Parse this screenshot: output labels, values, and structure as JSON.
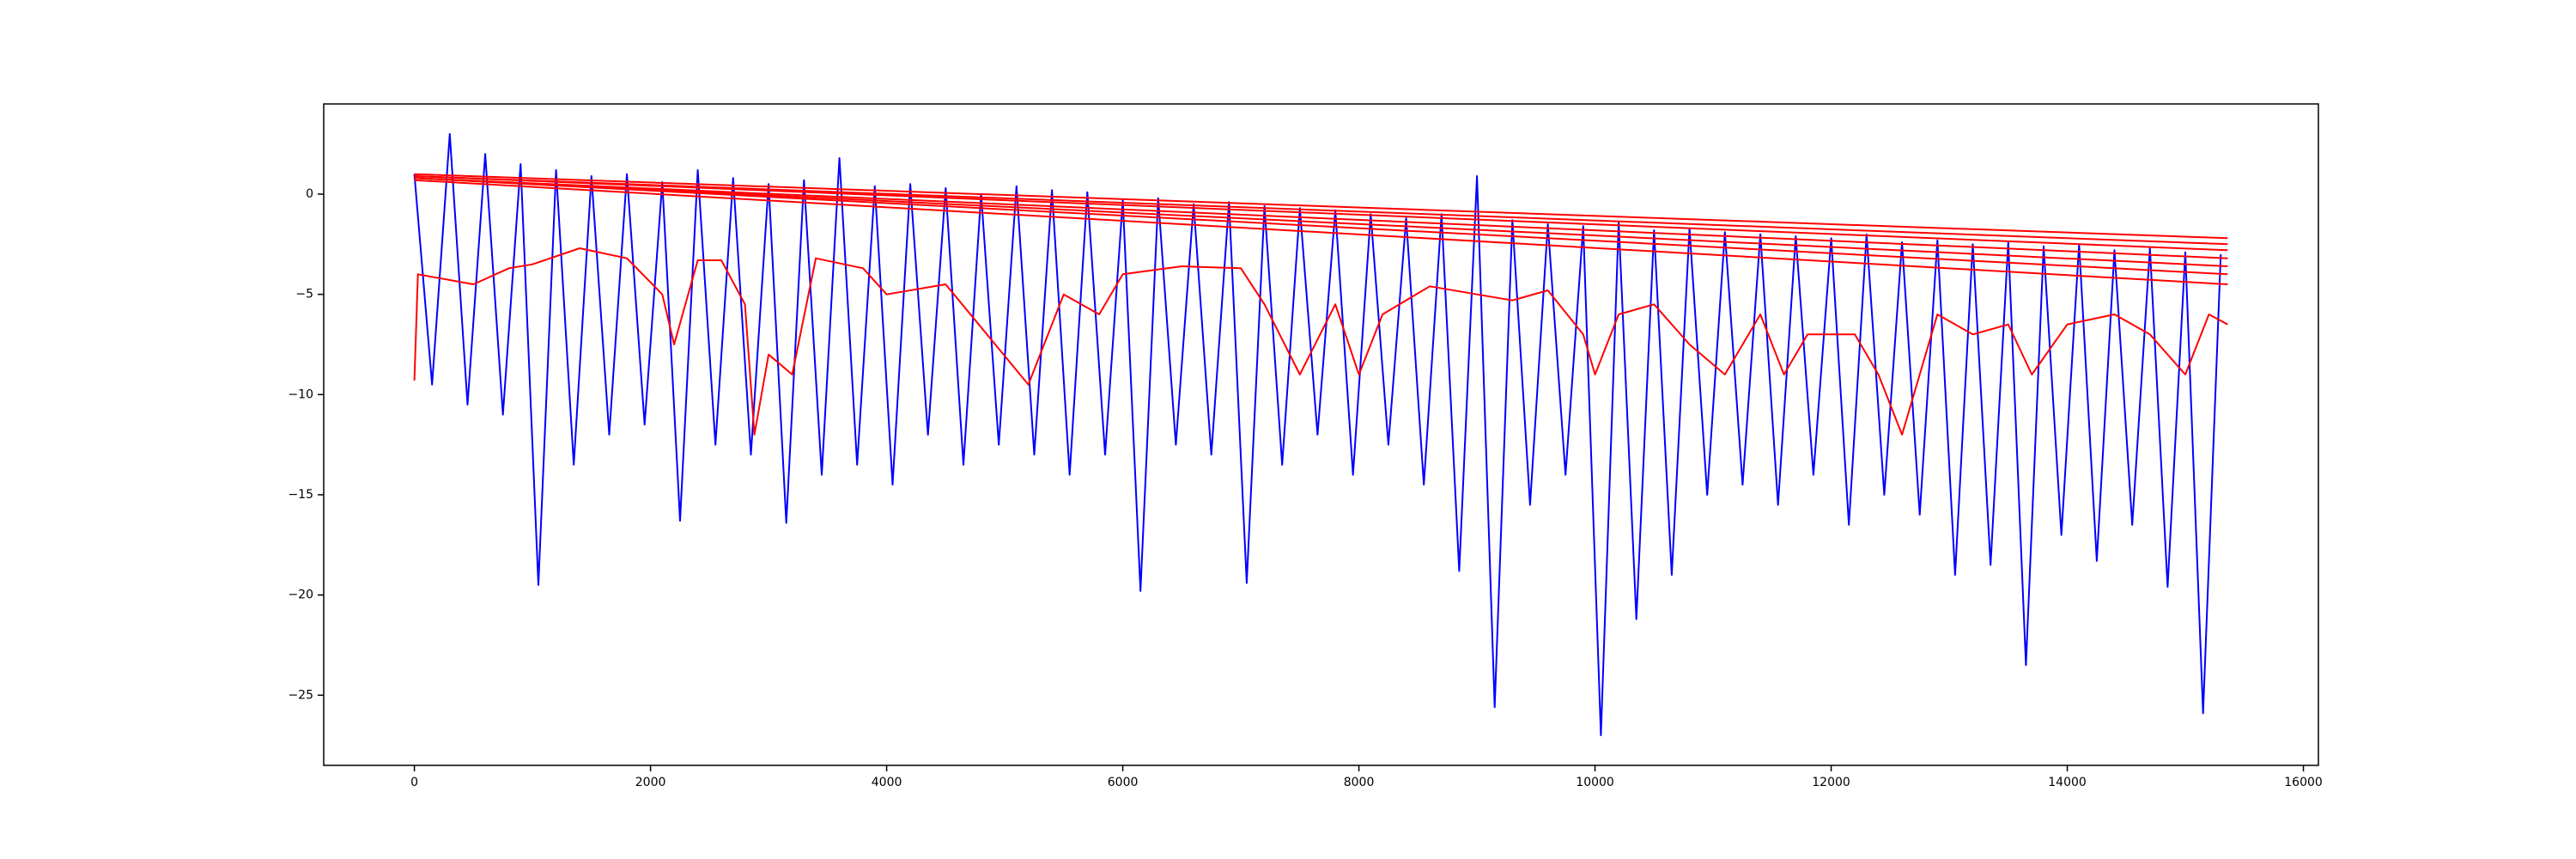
{
  "chart_data": {
    "type": "line",
    "x": [
      0,
      150,
      300,
      450,
      600,
      750,
      900,
      1050,
      1200,
      1350,
      1500,
      1650,
      1800,
      1950,
      2100,
      2250,
      2400,
      2550,
      2700,
      2850,
      3000,
      3150,
      3300,
      3450,
      3600,
      3750,
      3900,
      4050,
      4200,
      4350,
      4500,
      4650,
      4800,
      4950,
      5100,
      5250,
      5400,
      5550,
      5700,
      5850,
      6000,
      6150,
      6300,
      6450,
      6600,
      6750,
      6900,
      7050,
      7200,
      7350,
      7500,
      7650,
      7800,
      7950,
      8100,
      8250,
      8400,
      8550,
      8700,
      8850,
      9000,
      9150,
      9300,
      9450,
      9600,
      9750,
      9900,
      10050,
      10200,
      10350,
      10500,
      10650,
      10800,
      10950,
      11100,
      11250,
      11400,
      11550,
      11700,
      11850,
      12000,
      12150,
      12300,
      12450,
      12600,
      12750,
      12900,
      13050,
      13200,
      13350,
      13500,
      13650,
      13800,
      13950,
      14100,
      14250,
      14400,
      14550,
      14700,
      14850,
      15000,
      15150,
      15300
    ],
    "series": [
      {
        "color": "#0000ff",
        "values": [
          1.0,
          -9.5,
          3.0,
          -10.5,
          2.0,
          -11.0,
          1.5,
          -19.5,
          1.2,
          -13.5,
          0.9,
          -12.0,
          1.0,
          -11.5,
          0.6,
          -16.3,
          1.2,
          -12.5,
          0.8,
          -13.0,
          0.5,
          -16.4,
          0.7,
          -14.0,
          1.8,
          -13.5,
          0.4,
          -14.5,
          0.5,
          -12.0,
          0.3,
          -13.5,
          0.0,
          -12.5,
          0.4,
          -13.0,
          0.2,
          -14.0,
          0.1,
          -13.0,
          -0.3,
          -19.8,
          -0.2,
          -12.5,
          -0.5,
          -13.0,
          -0.4,
          -19.4,
          -0.6,
          -13.5,
          -0.7,
          -12.0,
          -0.8,
          -14.0,
          -1.0,
          -12.5,
          -1.2,
          -14.5,
          -1.0,
          -18.8,
          0.9,
          -25.6,
          -1.3,
          -15.5,
          -1.5,
          -14.0,
          -1.6,
          -27.0,
          -1.4,
          -21.2,
          -1.8,
          -19.0,
          -1.7,
          -15.0,
          -1.9,
          -14.5,
          -2.0,
          -15.5,
          -2.1,
          -14.0,
          -2.2,
          -16.5,
          -2.0,
          -15.0,
          -2.4,
          -16.0,
          -2.3,
          -19.0,
          -2.5,
          -18.5,
          -2.4,
          -23.5,
          -2.6,
          -17.0,
          -2.5,
          -18.3,
          -2.8,
          -16.5,
          -2.7,
          -19.6,
          -2.9,
          -25.9,
          -3.0
        ]
      },
      {
        "color": "#ff0000",
        "x": [
          0,
          30,
          500,
          800,
          1000,
          1400,
          1800,
          2100,
          2200,
          2400,
          2600,
          2800,
          2880,
          3000,
          3200,
          3400,
          3800,
          4000,
          4500,
          5200,
          5500,
          5800,
          6000,
          6500,
          7000,
          7200,
          7500,
          7800,
          8000,
          8200,
          8600,
          9000,
          9300,
          9600,
          9900,
          10000,
          10200,
          10500,
          10800,
          11100,
          11400,
          11600,
          11800,
          12200,
          12400,
          12600,
          12900,
          13200,
          13500,
          13700,
          14000,
          14400,
          14700,
          15000,
          15200,
          15359
        ],
        "values": [
          -9.3,
          -4.0,
          -4.5,
          -3.7,
          -3.5,
          -2.7,
          -3.2,
          -5.0,
          -7.5,
          -3.3,
          -3.3,
          -5.5,
          -12.0,
          -8.0,
          -9.0,
          -3.2,
          -3.7,
          -5.0,
          -4.5,
          -9.5,
          -5.0,
          -6.0,
          -4.0,
          -3.6,
          -3.7,
          -5.5,
          -9.0,
          -5.5,
          -9.0,
          -6.0,
          -4.6,
          -5.0,
          -5.3,
          -4.8,
          -7.0,
          -9.0,
          -6.0,
          -5.5,
          -7.5,
          -9.0,
          -6.0,
          -9.0,
          -7.0,
          -7.0,
          -9.0,
          -12.0,
          -6.0,
          -7.0,
          -6.5,
          -9.0,
          -6.5,
          -6.0,
          -7.0,
          -9.0,
          -6.0,
          -6.5
        ]
      },
      {
        "color": "#ff0000",
        "x": [
          0,
          15359
        ],
        "values": [
          1.0,
          -2.2
        ]
      },
      {
        "color": "#ff0000",
        "x": [
          0,
          15359
        ],
        "values": [
          0.9,
          -2.5
        ]
      },
      {
        "color": "#ff0000",
        "x": [
          0,
          15359
        ],
        "values": [
          0.9,
          -2.8
        ]
      },
      {
        "color": "#ff0000",
        "x": [
          0,
          15359
        ],
        "values": [
          0.8,
          -3.2
        ]
      },
      {
        "color": "#ff0000",
        "x": [
          0,
          15359
        ],
        "values": [
          0.8,
          -3.6
        ]
      },
      {
        "color": "#ff0000",
        "x": [
          0,
          15359
        ],
        "values": [
          0.8,
          -4.0
        ]
      },
      {
        "color": "#ff0000",
        "x": [
          0,
          15359
        ],
        "values": [
          0.7,
          -4.5
        ]
      }
    ],
    "xlim": [
      -768,
      16127
    ],
    "ylim": [
      -28.5,
      4.5
    ],
    "xticks": [
      0,
      2000,
      4000,
      6000,
      8000,
      10000,
      12000,
      14000,
      16000
    ],
    "yticks": [
      {
        "value": -25,
        "label": "−25"
      },
      {
        "value": -20,
        "label": "−20"
      },
      {
        "value": -15,
        "label": "−15"
      },
      {
        "value": -10,
        "label": "−10"
      },
      {
        "value": -5,
        "label": "−5"
      },
      0
    ]
  }
}
